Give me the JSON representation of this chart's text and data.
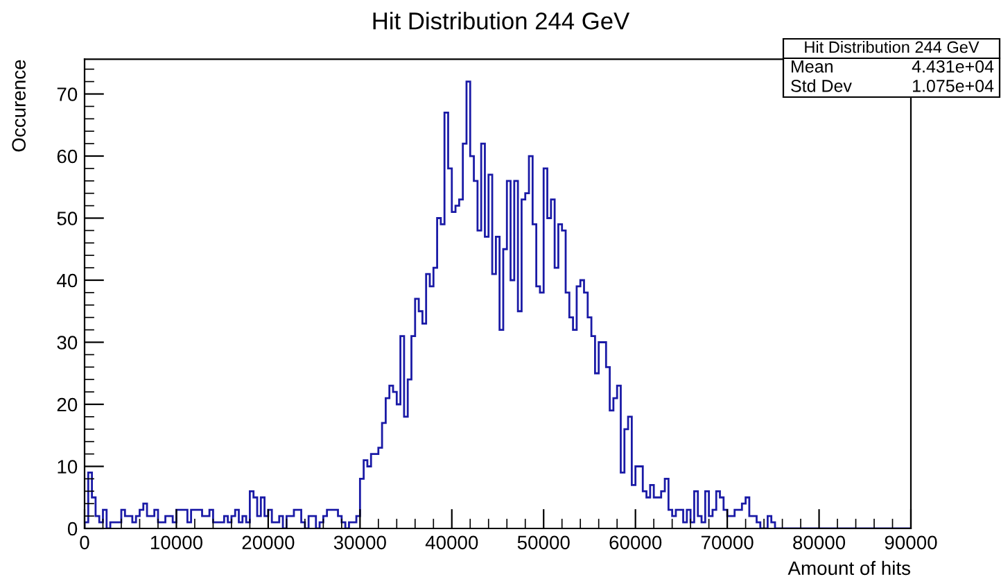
{
  "chart_data": {
    "type": "histogram",
    "title": "Hit Distribution 244 GeV",
    "xlabel": "Amount of hits",
    "ylabel": "Occurence",
    "bins": [
      0,
      400,
      800,
      1200,
      1600,
      2000,
      2400,
      2800,
      3200,
      3600,
      4000,
      4400,
      4800,
      5200,
      5600,
      6000,
      6400,
      6800,
      7200,
      7600,
      8000,
      8400,
      8800,
      9200,
      9600,
      10000,
      10400,
      10800,
      11200,
      11600,
      12000,
      12400,
      12800,
      13200,
      13600,
      14000,
      14400,
      14800,
      15200,
      15600,
      16000,
      16400,
      16800,
      17200,
      17600,
      18000,
      18400,
      18800,
      19200,
      19600,
      20000,
      20400,
      20800,
      21200,
      21600,
      22000,
      22400,
      22800,
      23200,
      23600,
      24000,
      24400,
      24800,
      25200,
      25600,
      26000,
      26400,
      26800,
      27200,
      27600,
      28000,
      28400,
      28800,
      29200,
      29600,
      30000,
      30400,
      30800,
      31200,
      31600,
      32000,
      32400,
      32800,
      33200,
      33600,
      34000,
      34400,
      34800,
      35200,
      35600,
      36000,
      36400,
      36800,
      37200,
      37600,
      38000,
      38400,
      38800,
      39200,
      39600,
      40000,
      40400,
      40800,
      41200,
      41600,
      42000,
      42400,
      42800,
      43200,
      43600,
      44000,
      44400,
      44800,
      45200,
      45600,
      46000,
      46400,
      46800,
      47200,
      47600,
      48000,
      48400,
      48800,
      49200,
      49600,
      50000,
      50400,
      50800,
      51200,
      51600,
      52000,
      52400,
      52800,
      53200,
      53600,
      54000,
      54400,
      54800,
      55200,
      55600,
      56000,
      56400,
      56800,
      57200,
      57600,
      58000,
      58400,
      58800,
      59200,
      59600,
      60000,
      60400,
      60800,
      61200,
      61600,
      62000,
      62400,
      62800,
      63200,
      63600,
      64000,
      64400,
      64800,
      65200,
      65600,
      66000,
      66400,
      66800,
      67200,
      67600,
      68000,
      68400,
      68800,
      69200,
      69600,
      70000,
      70400,
      70800,
      71200,
      71600,
      72000,
      72400,
      72800,
      73200,
      73600,
      74000,
      74400,
      74800,
      75200,
      75600,
      76000,
      76400,
      76800,
      77200,
      77600,
      78000,
      78400,
      78800,
      79200,
      79600,
      80000,
      80400,
      80800,
      81200,
      81600,
      82000,
      82400,
      82800,
      83200,
      83600,
      84000,
      84400,
      84800,
      85200,
      85600,
      86000,
      86400,
      86800,
      87200,
      87600,
      88000,
      88400,
      88800,
      89200,
      89600,
      90000
    ],
    "values": [
      1,
      9,
      5,
      2,
      1,
      3,
      0,
      1,
      1,
      1,
      3,
      2,
      2,
      1,
      2,
      3,
      4,
      2,
      2,
      3,
      1,
      1,
      2,
      2,
      1,
      3,
      3,
      3,
      1,
      3,
      3,
      3,
      2,
      2,
      3,
      1,
      1,
      1,
      2,
      1,
      2,
      3,
      1,
      2,
      1,
      6,
      5,
      2,
      5,
      2,
      3,
      1,
      1,
      2,
      0,
      2,
      2,
      3,
      3,
      1,
      0,
      2,
      2,
      0,
      1,
      2,
      3,
      3,
      3,
      2,
      1,
      0,
      1,
      1,
      2,
      8,
      11,
      10,
      12,
      12,
      13,
      17,
      21,
      23,
      22,
      20,
      31,
      18,
      24,
      31,
      37,
      35,
      33,
      41,
      39,
      42,
      50,
      49,
      67,
      58,
      51,
      52,
      53,
      62,
      72,
      60,
      56,
      48,
      62,
      47,
      57,
      41,
      47,
      32,
      45,
      56,
      40,
      56,
      35,
      53,
      54,
      60,
      49,
      39,
      38,
      58,
      50,
      53,
      42,
      49,
      48,
      38,
      34,
      32,
      39,
      40,
      38,
      34,
      31,
      25,
      30,
      30,
      26,
      19,
      21,
      23,
      9,
      16,
      18,
      7,
      10,
      10,
      6,
      5,
      7,
      5,
      5,
      6,
      8,
      3,
      2,
      3,
      3,
      1,
      3,
      1,
      6,
      2,
      1,
      6,
      2,
      3,
      6,
      5,
      3,
      2,
      2,
      3,
      3,
      4,
      5,
      2,
      2,
      1,
      0,
      0,
      2,
      1,
      0,
      0,
      0,
      0,
      0,
      0,
      0,
      0,
      0,
      0,
      0,
      0,
      0,
      0,
      0,
      0,
      0,
      0,
      0,
      0,
      0,
      0,
      0,
      0,
      0,
      0,
      0,
      0,
      0,
      0,
      0,
      0,
      0,
      0,
      0,
      0,
      0
    ],
    "color": "#1a1aa6",
    "xlim": [
      0,
      90000
    ],
    "ylim": [
      0,
      75.6
    ],
    "xticks": [
      0,
      10000,
      20000,
      30000,
      40000,
      50000,
      60000,
      70000,
      80000,
      90000
    ],
    "yticks": [
      0,
      10,
      20,
      30,
      40,
      50,
      60,
      70
    ],
    "grid": false,
    "legend": false,
    "annotations": [
      "Hit Distribution 244 GeV",
      "Mean",
      "4.431e+04",
      "Std Dev",
      "1.075e+04"
    ]
  }
}
